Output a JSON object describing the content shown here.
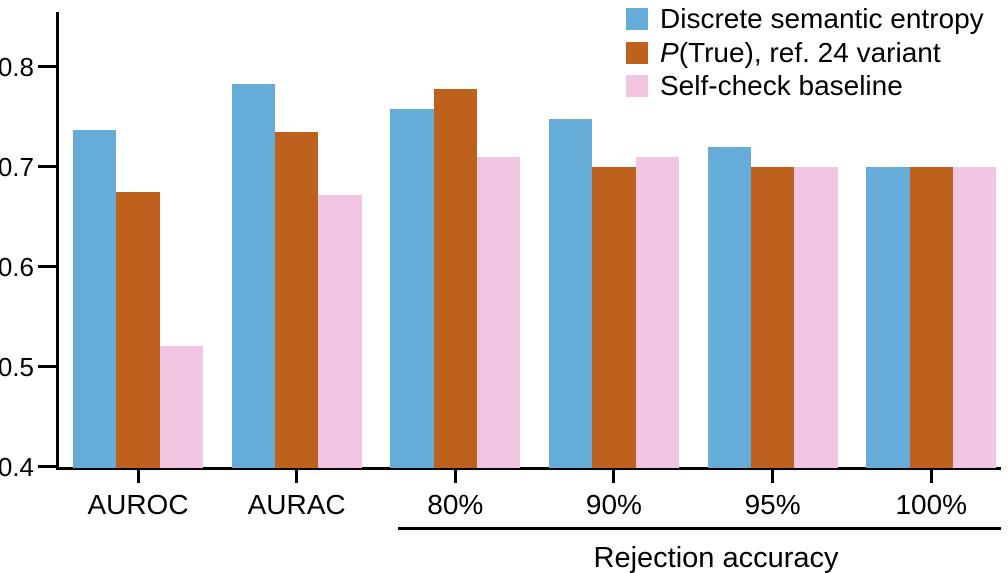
{
  "figure": {
    "background": "#ffffff",
    "axis_color": "#000000",
    "text_color": "#000000"
  },
  "chart_data": {
    "type": "bar",
    "title": "",
    "xlabel": "",
    "ylabel": "",
    "grid": false,
    "legend_position": "top-right",
    "ylim": [
      0.4,
      0.855
    ],
    "yticks": [
      0.4,
      0.5,
      0.6,
      0.7,
      0.8
    ],
    "categories": [
      "AUROC",
      "AURAC",
      "80%",
      "90%",
      "95%",
      "100%"
    ],
    "series": [
      {
        "name": "Discrete semantic entropy",
        "name_parts": [
          {
            "text": "Discrete semantic entropy",
            "italic": false
          }
        ],
        "color": "#65ACD8",
        "values": [
          0.737,
          0.783,
          0.758,
          0.748,
          0.72,
          0.7
        ]
      },
      {
        "name": "P(True), ref. 24 variant",
        "name_parts": [
          {
            "text": "P",
            "italic": true
          },
          {
            "text": "(True), ref. 24 variant",
            "italic": false
          }
        ],
        "color": "#BD611D",
        "values": [
          0.675,
          0.735,
          0.778,
          0.7,
          0.7,
          0.7
        ]
      },
      {
        "name": "Self-check baseline",
        "name_parts": [
          {
            "text": "Self-check baseline",
            "italic": false
          }
        ],
        "color": "#F2C6E3",
        "values": [
          0.521,
          0.672,
          0.71,
          0.71,
          0.7,
          0.7
        ]
      }
    ],
    "group_annotation": {
      "label": "Rejection accuracy",
      "from_category": "80%",
      "to_category": "100%"
    }
  }
}
